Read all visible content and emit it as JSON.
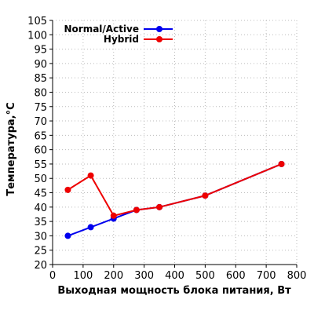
{
  "chart_data": {
    "type": "line",
    "title": "",
    "xlabel": "Выходная мощность блока питания, Вт",
    "ylabel": "Температура,°C",
    "xlim": [
      0,
      800
    ],
    "ylim": [
      20,
      105
    ],
    "x_ticks": [
      0,
      100,
      200,
      300,
      400,
      500,
      600,
      700,
      800
    ],
    "y_ticks": [
      20,
      25,
      30,
      35,
      40,
      45,
      50,
      55,
      60,
      65,
      70,
      75,
      80,
      85,
      90,
      95,
      100,
      105
    ],
    "grid": true,
    "legend_position": "top-right",
    "series": [
      {
        "name": "Normal/Active",
        "color": "#0000ee",
        "x": [
          50,
          125,
          200,
          275,
          350,
          500,
          750
        ],
        "y": [
          30,
          33,
          36,
          39,
          40,
          44,
          55
        ]
      },
      {
        "name": "Hybrid",
        "color": "#ee0000",
        "x": [
          50,
          125,
          200,
          275,
          350,
          500,
          750
        ],
        "y": [
          46,
          51,
          37,
          39,
          40,
          44,
          55
        ]
      }
    ]
  }
}
